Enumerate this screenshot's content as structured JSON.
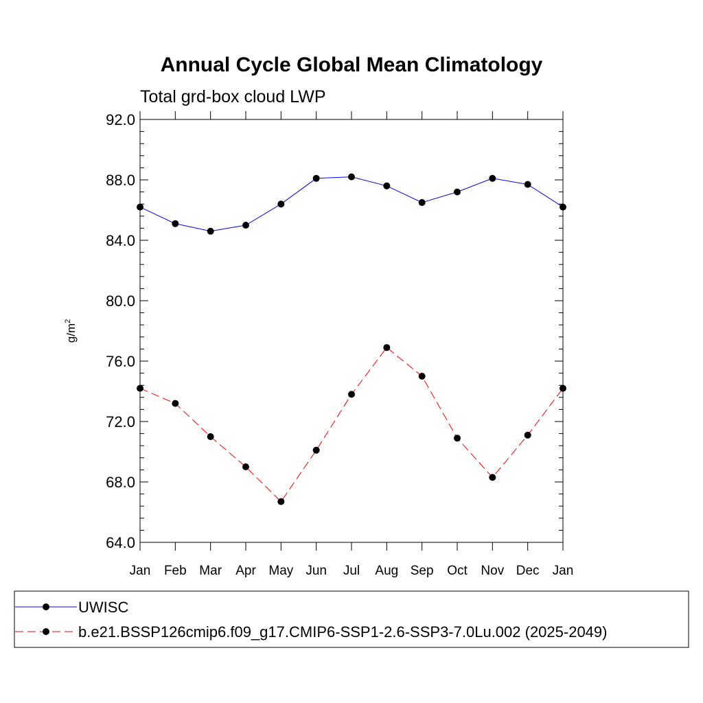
{
  "chart_data": {
    "type": "line",
    "title": "Annual Cycle Global Mean Climatology",
    "subtitle": "Total grd-box cloud LWP",
    "ylabel_base": "g/m",
    "ylabel_sup": "2",
    "xlabel": "",
    "categories": [
      "Jan",
      "Feb",
      "Mar",
      "Apr",
      "May",
      "Jun",
      "Jul",
      "Aug",
      "Sep",
      "Oct",
      "Nov",
      "Dec",
      "Jan"
    ],
    "ylim": [
      64.0,
      92.0
    ],
    "yticks": [
      "64.0",
      "68.0",
      "72.0",
      "76.0",
      "80.0",
      "84.0",
      "88.0",
      "92.0"
    ],
    "grid": false,
    "legend_position": "bottom",
    "series": [
      {
        "name": "UWISC",
        "color": "#0000ff",
        "dash": "solid",
        "values": [
          86.2,
          85.1,
          84.6,
          85.0,
          86.4,
          88.1,
          88.2,
          87.6,
          86.5,
          87.2,
          88.1,
          87.7,
          86.2
        ]
      },
      {
        "name": "b.e21.BSSP126cmip6.f09_g17.CMIP6-SSP1-2.6-SSP3-7.0Lu.002 (2025-2049)",
        "color": "#ff0000",
        "dash": "dashed",
        "values": [
          74.2,
          73.2,
          71.0,
          69.0,
          66.7,
          70.1,
          73.8,
          76.9,
          75.0,
          70.9,
          68.3,
          71.1,
          74.2
        ]
      }
    ]
  }
}
